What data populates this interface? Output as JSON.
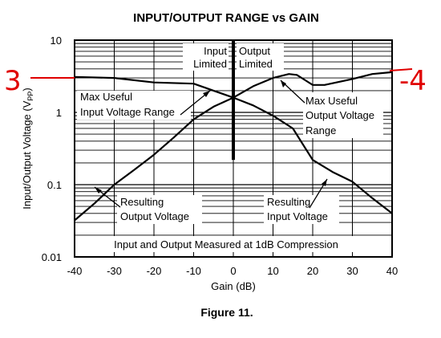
{
  "chart_data": {
    "type": "line",
    "title": "INPUT/OUTPUT RANGE vs GAIN",
    "xlabel": "Gain (dB)",
    "ylabel": "Input/Output Voltage (V",
    "ylabel_sub": "PP",
    "ylabel_close": ")",
    "xlim": [
      -40,
      40
    ],
    "ylim": [
      0.01,
      10
    ],
    "yscale": "log",
    "grid": true,
    "x_ticks": [
      -40,
      -30,
      -20,
      -10,
      0,
      10,
      20,
      30,
      40
    ],
    "x_tick_labels": [
      "-40",
      "-30",
      "-20",
      "-10",
      "0",
      "10",
      "20",
      "30",
      "40"
    ],
    "y_ticks": [
      0.01,
      0.1,
      1,
      10
    ],
    "y_tick_labels": [
      "0.01",
      "0.1",
      "1",
      "10"
    ],
    "series": [
      {
        "name": "Max Useful Input Voltage Range",
        "x": [
          -40,
          -30,
          -20,
          -10,
          -5,
          0,
          5,
          10,
          15,
          20,
          25,
          30,
          35,
          40
        ],
        "y": [
          3.1,
          3.0,
          2.6,
          2.5,
          2.0,
          1.6,
          1.25,
          0.9,
          0.6,
          0.22,
          0.15,
          0.11,
          0.065,
          0.04
        ]
      },
      {
        "name": "Max Useful Output Voltage Range",
        "x": [
          -40,
          -35,
          -30,
          -25,
          -20,
          -15,
          -10,
          -5,
          0,
          5,
          10,
          14,
          16,
          20,
          23,
          30,
          35,
          40
        ],
        "y": [
          0.032,
          0.055,
          0.1,
          0.16,
          0.26,
          0.45,
          0.8,
          1.2,
          1.6,
          2.3,
          3.0,
          3.4,
          3.3,
          2.4,
          2.4,
          2.9,
          3.4,
          3.6
        ]
      }
    ],
    "marker_line": {
      "x": 0,
      "y_from": 0.22,
      "y_to": 10
    },
    "annotations": {
      "input_limited": [
        "Input",
        "Limited"
      ],
      "output_limited": [
        "Output",
        "Limited"
      ],
      "max_input": [
        "Max Useful",
        "Input Voltage Range"
      ],
      "max_output": [
        "Max Useful",
        "Output Voltage",
        "Range"
      ],
      "res_output": [
        "Resulting",
        "Output Voltage"
      ],
      "res_input": [
        "Resulting",
        "Input Voltage"
      ],
      "footnote": "Input and Output Measured at 1dB Compression"
    },
    "handwritten": {
      "left": "3",
      "right": "-4",
      "color": "#e00000"
    }
  },
  "caption": "Figure 11."
}
